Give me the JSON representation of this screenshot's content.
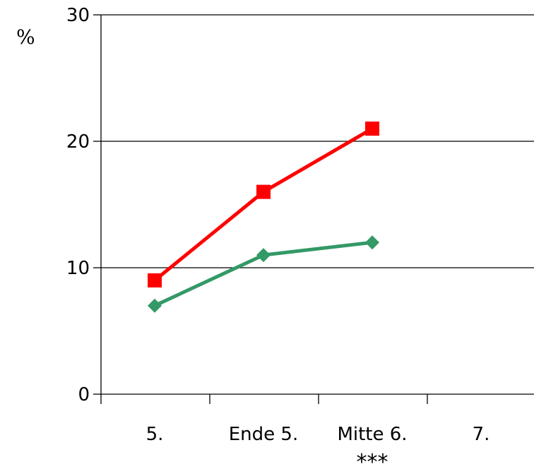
{
  "chart_data": {
    "type": "line",
    "categories": [
      "5.",
      "Ende 5.",
      "Mitte 6.",
      "7."
    ],
    "ylabel": "%",
    "ylim": [
      0,
      30
    ],
    "yticks": [
      0,
      10,
      20,
      30
    ],
    "grid": true,
    "legend": "none",
    "annotation": "***",
    "series": [
      {
        "color": "#ff0000",
        "marker": "square",
        "values": [
          9,
          16,
          21,
          null
        ]
      },
      {
        "color": "#339966",
        "marker": "diamond",
        "values": [
          7,
          11,
          12,
          null
        ]
      }
    ]
  }
}
